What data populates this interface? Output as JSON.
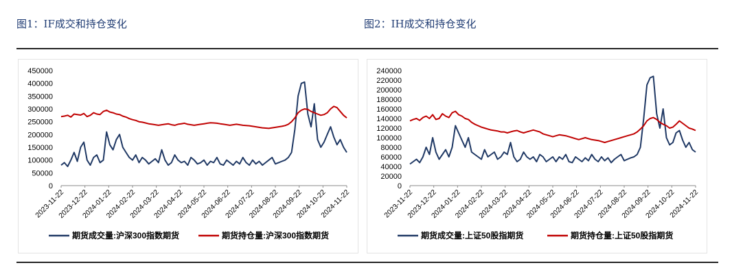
{
  "figures": {
    "left_title": "图1：IF成交和持仓变化",
    "right_title": "图2：IH成交和持仓变化"
  },
  "colors": {
    "volume": "#1f3864",
    "oi": "#c00000",
    "axis": "#888888",
    "text": "#000000"
  },
  "chart_data": [
    {
      "type": "line",
      "title": "",
      "xlabel": "",
      "ylabel": "",
      "ylim": [
        0,
        450000
      ],
      "yticks": [
        "450000",
        "400000",
        "350000",
        "300000",
        "250000",
        "200000",
        "150000",
        "100000",
        "50000",
        "0"
      ],
      "xticks": [
        "2023-11-22",
        "2023-12-22",
        "2024-01-22",
        "2024-02-22",
        "2024-03-22",
        "2024-04-22",
        "2024-05-22",
        "2024-06-22",
        "2024-07-22",
        "2024-08-22",
        "2024-09-22",
        "2024-10-22",
        "2024-11-22"
      ],
      "grid": false,
      "legend_position": "bottom",
      "series": [
        {
          "name": "期货成交量:沪深300指数期货",
          "values": [
            80000,
            90000,
            75000,
            100000,
            130000,
            95000,
            150000,
            170000,
            100000,
            80000,
            110000,
            120000,
            90000,
            100000,
            210000,
            160000,
            140000,
            180000,
            200000,
            150000,
            130000,
            110000,
            100000,
            120000,
            90000,
            110000,
            100000,
            85000,
            95000,
            105000,
            90000,
            140000,
            100000,
            80000,
            90000,
            120000,
            100000,
            90000,
            95000,
            80000,
            110000,
            100000,
            85000,
            90000,
            100000,
            80000,
            95000,
            90000,
            110000,
            85000,
            80000,
            100000,
            90000,
            80000,
            95000,
            85000,
            110000,
            90000,
            80000,
            100000,
            85000,
            95000,
            80000,
            90000,
            100000,
            110000,
            85000,
            90000,
            95000,
            100000,
            110000,
            130000,
            220000,
            350000,
            400000,
            405000,
            280000,
            230000,
            320000,
            180000,
            150000,
            170000,
            200000,
            230000,
            190000,
            160000,
            180000,
            150000,
            130000
          ]
        },
        {
          "name": "期货持仓量:沪深300指数期货",
          "values": [
            270000,
            272000,
            275000,
            268000,
            280000,
            278000,
            276000,
            282000,
            270000,
            275000,
            285000,
            280000,
            278000,
            290000,
            295000,
            288000,
            285000,
            280000,
            278000,
            272000,
            268000,
            262000,
            258000,
            255000,
            250000,
            248000,
            245000,
            242000,
            240000,
            238000,
            236000,
            238000,
            240000,
            242000,
            238000,
            236000,
            240000,
            242000,
            244000,
            240000,
            238000,
            236000,
            238000,
            240000,
            242000,
            244000,
            246000,
            245000,
            244000,
            242000,
            240000,
            238000,
            236000,
            238000,
            240000,
            238000,
            236000,
            235000,
            234000,
            232000,
            230000,
            228000,
            226000,
            225000,
            224000,
            226000,
            228000,
            230000,
            232000,
            235000,
            240000,
            250000,
            265000,
            285000,
            295000,
            300000,
            298000,
            290000,
            285000,
            280000,
            275000,
            278000,
            285000,
            300000,
            310000,
            305000,
            290000,
            275000,
            265000
          ]
        }
      ]
    },
    {
      "type": "line",
      "title": "",
      "xlabel": "",
      "ylabel": "",
      "ylim": [
        0,
        240000
      ],
      "yticks": [
        "240000",
        "220000",
        "200000",
        "180000",
        "160000",
        "140000",
        "120000",
        "100000",
        "80000",
        "60000",
        "40000",
        "20000",
        "0"
      ],
      "xticks": [
        "2023-11-22",
        "2023-12-22",
        "2024-01-22",
        "2024-02-22",
        "2024-03-22",
        "2024-04-22",
        "2024-05-22",
        "2024-06-22",
        "2024-07-22",
        "2024-08-22",
        "2024-09-22",
        "2024-10-22",
        "2024-11-22"
      ],
      "grid": false,
      "legend_position": "bottom",
      "series": [
        {
          "name": "期货成交量:上证50股指期货",
          "values": [
            45000,
            50000,
            55000,
            48000,
            60000,
            80000,
            65000,
            100000,
            70000,
            55000,
            65000,
            75000,
            60000,
            80000,
            125000,
            110000,
            95000,
            80000,
            100000,
            70000,
            65000,
            60000,
            55000,
            75000,
            60000,
            65000,
            70000,
            55000,
            60000,
            70000,
            65000,
            90000,
            60000,
            50000,
            55000,
            70000,
            60000,
            55000,
            60000,
            50000,
            65000,
            60000,
            50000,
            55000,
            60000,
            50000,
            60000,
            55000,
            65000,
            50000,
            48000,
            60000,
            55000,
            50000,
            58000,
            52000,
            65000,
            55000,
            50000,
            60000,
            52000,
            58000,
            48000,
            55000,
            60000,
            65000,
            52000,
            55000,
            58000,
            60000,
            65000,
            80000,
            140000,
            210000,
            225000,
            228000,
            150000,
            120000,
            160000,
            100000,
            85000,
            90000,
            110000,
            115000,
            95000,
            80000,
            90000,
            75000,
            70000
          ]
        },
        {
          "name": "期货持仓量:上证50股指期货",
          "values": [
            135000,
            138000,
            140000,
            136000,
            142000,
            145000,
            140000,
            148000,
            138000,
            140000,
            150000,
            145000,
            142000,
            152000,
            155000,
            148000,
            145000,
            140000,
            138000,
            132000,
            128000,
            125000,
            122000,
            120000,
            118000,
            116000,
            115000,
            114000,
            112000,
            112000,
            110000,
            112000,
            114000,
            115000,
            112000,
            110000,
            112000,
            114000,
            116000,
            114000,
            112000,
            108000,
            106000,
            104000,
            102000,
            104000,
            106000,
            105000,
            104000,
            102000,
            100000,
            98000,
            96000,
            98000,
            100000,
            98000,
            96000,
            95000,
            94000,
            92000,
            90000,
            92000,
            94000,
            96000,
            98000,
            100000,
            102000,
            104000,
            106000,
            108000,
            112000,
            118000,
            125000,
            135000,
            140000,
            142000,
            138000,
            132000,
            128000,
            125000,
            120000,
            122000,
            128000,
            135000,
            130000,
            125000,
            120000,
            118000,
            115000
          ]
        }
      ]
    }
  ]
}
